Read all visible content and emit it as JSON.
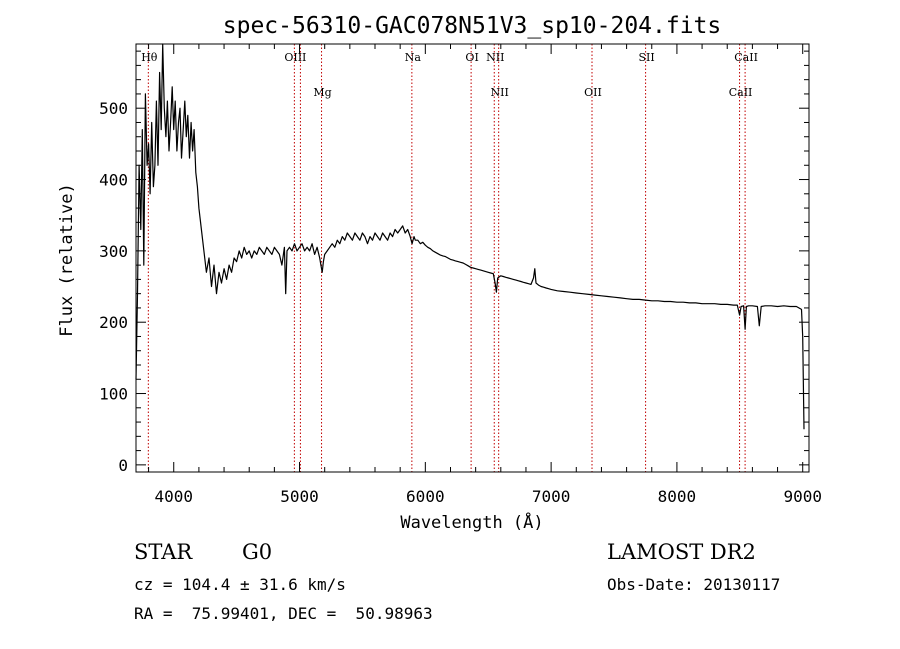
{
  "chart_data": {
    "type": "line",
    "title": "spec-56310-GAC078N51V3_sp10-204.fits",
    "xlabel": "Wavelength (Å)",
    "ylabel": "Flux (relative)",
    "xlim": [
      3700,
      9050
    ],
    "ylim": [
      -10,
      590
    ],
    "xticks": [
      4000,
      5000,
      6000,
      7000,
      8000,
      9000
    ],
    "yticks": [
      0,
      100,
      200,
      300,
      400,
      500
    ],
    "grid": false,
    "series": [
      {
        "color": "#000000",
        "points": [
          [
            3700,
            120
          ],
          [
            3712,
            240
          ],
          [
            3725,
            420
          ],
          [
            3738,
            330
          ],
          [
            3750,
            470
          ],
          [
            3762,
            280
          ],
          [
            3775,
            520
          ],
          [
            3788,
            420
          ],
          [
            3800,
            450
          ],
          [
            3812,
            380
          ],
          [
            3825,
            480
          ],
          [
            3838,
            390
          ],
          [
            3850,
            420
          ],
          [
            3862,
            510
          ],
          [
            3875,
            420
          ],
          [
            3888,
            550
          ],
          [
            3900,
            470
          ],
          [
            3912,
            590
          ],
          [
            3925,
            500
          ],
          [
            3938,
            460
          ],
          [
            3950,
            510
          ],
          [
            3962,
            440
          ],
          [
            3975,
            480
          ],
          [
            3988,
            530
          ],
          [
            4000,
            470
          ],
          [
            4012,
            510
          ],
          [
            4025,
            440
          ],
          [
            4038,
            480
          ],
          [
            4050,
            500
          ],
          [
            4062,
            430
          ],
          [
            4075,
            470
          ],
          [
            4088,
            510
          ],
          [
            4100,
            460
          ],
          [
            4112,
            490
          ],
          [
            4125,
            430
          ],
          [
            4138,
            480
          ],
          [
            4150,
            440
          ],
          [
            4162,
            470
          ],
          [
            4175,
            410
          ],
          [
            4188,
            390
          ],
          [
            4200,
            360
          ],
          [
            4220,
            330
          ],
          [
            4240,
            300
          ],
          [
            4260,
            270
          ],
          [
            4280,
            290
          ],
          [
            4300,
            250
          ],
          [
            4320,
            280
          ],
          [
            4340,
            240
          ],
          [
            4360,
            270
          ],
          [
            4380,
            255
          ],
          [
            4400,
            275
          ],
          [
            4420,
            260
          ],
          [
            4440,
            280
          ],
          [
            4460,
            270
          ],
          [
            4480,
            290
          ],
          [
            4500,
            285
          ],
          [
            4520,
            300
          ],
          [
            4540,
            290
          ],
          [
            4560,
            305
          ],
          [
            4580,
            295
          ],
          [
            4600,
            300
          ],
          [
            4620,
            290
          ],
          [
            4640,
            300
          ],
          [
            4660,
            295
          ],
          [
            4680,
            305
          ],
          [
            4700,
            300
          ],
          [
            4720,
            295
          ],
          [
            4740,
            305
          ],
          [
            4760,
            300
          ],
          [
            4780,
            295
          ],
          [
            4800,
            305
          ],
          [
            4820,
            300
          ],
          [
            4840,
            295
          ],
          [
            4860,
            280
          ],
          [
            4880,
            305
          ],
          [
            4890,
            240
          ],
          [
            4900,
            300
          ],
          [
            4920,
            305
          ],
          [
            4940,
            300
          ],
          [
            4960,
            310
          ],
          [
            4980,
            300
          ],
          [
            5000,
            305
          ],
          [
            5020,
            310
          ],
          [
            5040,
            300
          ],
          [
            5060,
            305
          ],
          [
            5080,
            300
          ],
          [
            5100,
            310
          ],
          [
            5120,
            295
          ],
          [
            5140,
            305
          ],
          [
            5160,
            290
          ],
          [
            5170,
            280
          ],
          [
            5180,
            270
          ],
          [
            5190,
            285
          ],
          [
            5200,
            295
          ],
          [
            5220,
            300
          ],
          [
            5240,
            305
          ],
          [
            5260,
            310
          ],
          [
            5280,
            305
          ],
          [
            5300,
            315
          ],
          [
            5320,
            310
          ],
          [
            5340,
            320
          ],
          [
            5360,
            315
          ],
          [
            5380,
            325
          ],
          [
            5400,
            320
          ],
          [
            5420,
            315
          ],
          [
            5440,
            325
          ],
          [
            5460,
            320
          ],
          [
            5480,
            315
          ],
          [
            5500,
            325
          ],
          [
            5520,
            320
          ],
          [
            5540,
            310
          ],
          [
            5560,
            320
          ],
          [
            5580,
            315
          ],
          [
            5600,
            325
          ],
          [
            5620,
            320
          ],
          [
            5640,
            315
          ],
          [
            5660,
            325
          ],
          [
            5680,
            320
          ],
          [
            5700,
            315
          ],
          [
            5720,
            325
          ],
          [
            5740,
            320
          ],
          [
            5760,
            330
          ],
          [
            5780,
            325
          ],
          [
            5800,
            330
          ],
          [
            5820,
            335
          ],
          [
            5840,
            325
          ],
          [
            5860,
            330
          ],
          [
            5880,
            320
          ],
          [
            5895,
            310
          ],
          [
            5910,
            320
          ],
          [
            5920,
            315
          ],
          [
            5940,
            315
          ],
          [
            5960,
            310
          ],
          [
            5980,
            312
          ],
          [
            6000,
            308
          ],
          [
            6020,
            305
          ],
          [
            6040,
            303
          ],
          [
            6060,
            300
          ],
          [
            6080,
            298
          ],
          [
            6100,
            296
          ],
          [
            6120,
            294
          ],
          [
            6140,
            293
          ],
          [
            6160,
            292
          ],
          [
            6180,
            290
          ],
          [
            6200,
            288
          ],
          [
            6220,
            287
          ],
          [
            6240,
            286
          ],
          [
            6260,
            285
          ],
          [
            6280,
            284
          ],
          [
            6300,
            283
          ],
          [
            6320,
            281
          ],
          [
            6340,
            279
          ],
          [
            6360,
            277
          ],
          [
            6380,
            276
          ],
          [
            6400,
            275
          ],
          [
            6420,
            274
          ],
          [
            6440,
            273
          ],
          [
            6460,
            272
          ],
          [
            6480,
            271
          ],
          [
            6500,
            270
          ],
          [
            6520,
            269
          ],
          [
            6540,
            268
          ],
          [
            6555,
            255
          ],
          [
            6565,
            242
          ],
          [
            6575,
            262
          ],
          [
            6600,
            265
          ],
          [
            6620,
            264
          ],
          [
            6640,
            263
          ],
          [
            6660,
            262
          ],
          [
            6680,
            261
          ],
          [
            6700,
            260
          ],
          [
            6720,
            259
          ],
          [
            6740,
            258
          ],
          [
            6760,
            257
          ],
          [
            6780,
            256
          ],
          [
            6800,
            255
          ],
          [
            6820,
            254
          ],
          [
            6840,
            253
          ],
          [
            6860,
            262
          ],
          [
            6870,
            275
          ],
          [
            6880,
            255
          ],
          [
            6900,
            252
          ],
          [
            6920,
            250
          ],
          [
            6940,
            249
          ],
          [
            6960,
            248
          ],
          [
            6980,
            247
          ],
          [
            7000,
            246
          ],
          [
            7050,
            244
          ],
          [
            7100,
            243
          ],
          [
            7150,
            242
          ],
          [
            7200,
            241
          ],
          [
            7250,
            240
          ],
          [
            7300,
            239
          ],
          [
            7350,
            238
          ],
          [
            7400,
            237
          ],
          [
            7450,
            236
          ],
          [
            7500,
            235
          ],
          [
            7550,
            234
          ],
          [
            7600,
            233
          ],
          [
            7650,
            232
          ],
          [
            7700,
            232
          ],
          [
            7750,
            231
          ],
          [
            7800,
            230
          ],
          [
            7850,
            230
          ],
          [
            7900,
            229
          ],
          [
            7950,
            229
          ],
          [
            8000,
            228
          ],
          [
            8050,
            228
          ],
          [
            8100,
            227
          ],
          [
            8150,
            227
          ],
          [
            8200,
            226
          ],
          [
            8250,
            226
          ],
          [
            8300,
            226
          ],
          [
            8350,
            225
          ],
          [
            8400,
            225
          ],
          [
            8450,
            224
          ],
          [
            8480,
            224
          ],
          [
            8498,
            210
          ],
          [
            8510,
            222
          ],
          [
            8530,
            223
          ],
          [
            8542,
            190
          ],
          [
            8552,
            222
          ],
          [
            8570,
            223
          ],
          [
            8600,
            223
          ],
          [
            8640,
            222
          ],
          [
            8655,
            195
          ],
          [
            8670,
            222
          ],
          [
            8700,
            223
          ],
          [
            8750,
            223
          ],
          [
            8800,
            222
          ],
          [
            8850,
            223
          ],
          [
            8900,
            222
          ],
          [
            8950,
            222
          ],
          [
            8990,
            218
          ],
          [
            9000,
            180
          ],
          [
            9010,
            50
          ]
        ]
      }
    ],
    "lines": [
      {
        "label": "Hθ",
        "wavelength": 3798
      },
      {
        "label": "OIII",
        "wavelength": 4959
      },
      {
        "label": "OIII",
        "wavelength": 5007
      },
      {
        "label": "Mg",
        "wavelength": 5175
      },
      {
        "label": "Na",
        "wavelength": 5893
      },
      {
        "label": "OI",
        "wavelength": 6364
      },
      {
        "label": "NII",
        "wavelength": 6548
      },
      {
        "label": "NII",
        "wavelength": 6583
      },
      {
        "label": "OII",
        "wavelength": 7325
      },
      {
        "label": "SII",
        "wavelength": 7751
      },
      {
        "label": "CaII",
        "wavelength": 8498
      },
      {
        "label": "CaII",
        "wavelength": 8542
      }
    ],
    "line_color": "#c00000"
  },
  "info": {
    "class_label": "STAR",
    "subclass": "G0",
    "survey": "LAMOST DR2",
    "redshift": "cz = 104.4 ± 31.6 km/s",
    "obs_date": "Obs-Date: 20130117",
    "coords": "RA =  75.99401, DEC =  50.98963"
  }
}
